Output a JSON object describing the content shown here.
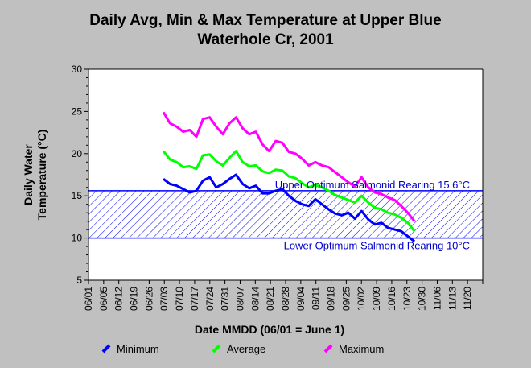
{
  "chart_data": {
    "type": "line",
    "title_lines": [
      "Daily Avg, Min & Max Temperature at Upper Blue",
      "Waterhole Cr, 2001"
    ],
    "xlabel": "Date MMDD (06/01 = June 1)",
    "ylabel_lines": [
      "Daily Water",
      "Temperature (°C)"
    ],
    "ylim": [
      5,
      30
    ],
    "yticks": [
      5,
      10,
      15,
      20,
      25,
      30
    ],
    "xlim": [
      "2001-06-01",
      "2001-11-27"
    ],
    "xtick_labels": [
      "06/01",
      "06/05",
      "06/12",
      "06/19",
      "06/26",
      "07/03",
      "07/10",
      "07/17",
      "07/24",
      "07/31",
      "08/07",
      "08/14",
      "08/21",
      "08/28",
      "09/04",
      "09/11",
      "09/18",
      "09/25",
      "10/02",
      "10/09",
      "10/16",
      "10/23",
      "10/30",
      "11/06",
      "11/13",
      "11/20"
    ],
    "grid": false,
    "reference_band": {
      "upper": 15.6,
      "lower": 10,
      "upper_label": "Upper Optimum Salmonid Rearing 15.6°C",
      "lower_label": "Lower Optimum Salmonid Rearing 10°C",
      "color": "#0000ff"
    },
    "series": [
      {
        "name": "Maximum",
        "color": "#ff00ff",
        "x": [
          "2001-07-05",
          "2001-07-08",
          "2001-07-11",
          "2001-07-14",
          "2001-07-17",
          "2001-07-20",
          "2001-07-23",
          "2001-07-26",
          "2001-07-29",
          "2001-08-01",
          "2001-08-04",
          "2001-08-07",
          "2001-08-10",
          "2001-08-13",
          "2001-08-16",
          "2001-08-19",
          "2001-08-22",
          "2001-08-25",
          "2001-08-28",
          "2001-08-31",
          "2001-09-03",
          "2001-09-06",
          "2001-09-09",
          "2001-09-12",
          "2001-09-15",
          "2001-09-18",
          "2001-09-21",
          "2001-09-24",
          "2001-09-27",
          "2001-09-30",
          "2001-10-03",
          "2001-10-06",
          "2001-10-09",
          "2001-10-12",
          "2001-10-15",
          "2001-10-18",
          "2001-10-21",
          "2001-10-24",
          "2001-10-27"
        ],
        "values": [
          24.9,
          23.6,
          23.2,
          22.6,
          22.8,
          22.0,
          24.1,
          24.3,
          23.2,
          22.3,
          23.6,
          24.3,
          23.0,
          22.3,
          22.6,
          21.1,
          20.3,
          21.5,
          21.3,
          20.2,
          20.0,
          19.4,
          18.6,
          19.0,
          18.6,
          18.4,
          17.8,
          17.2,
          16.6,
          16.1,
          17.2,
          16.0,
          15.4,
          15.2,
          14.8,
          14.5,
          13.8,
          13.0,
          12.0
        ]
      },
      {
        "name": "Average",
        "color": "#00ff00",
        "x": [
          "2001-07-05",
          "2001-07-08",
          "2001-07-11",
          "2001-07-14",
          "2001-07-17",
          "2001-07-20",
          "2001-07-23",
          "2001-07-26",
          "2001-07-29",
          "2001-08-01",
          "2001-08-04",
          "2001-08-07",
          "2001-08-10",
          "2001-08-13",
          "2001-08-16",
          "2001-08-19",
          "2001-08-22",
          "2001-08-25",
          "2001-08-28",
          "2001-08-31",
          "2001-09-03",
          "2001-09-06",
          "2001-09-09",
          "2001-09-12",
          "2001-09-15",
          "2001-09-18",
          "2001-09-21",
          "2001-09-24",
          "2001-09-27",
          "2001-09-30",
          "2001-10-03",
          "2001-10-06",
          "2001-10-09",
          "2001-10-12",
          "2001-10-15",
          "2001-10-18",
          "2001-10-21",
          "2001-10-24",
          "2001-10-27"
        ],
        "values": [
          20.3,
          19.3,
          19.0,
          18.4,
          18.5,
          18.2,
          19.8,
          19.9,
          19.1,
          18.6,
          19.5,
          20.3,
          19.0,
          18.5,
          18.6,
          17.9,
          17.7,
          18.1,
          18.0,
          17.3,
          17.1,
          16.5,
          16.0,
          16.3,
          16.0,
          15.6,
          15.1,
          14.8,
          14.5,
          14.2,
          15.0,
          14.2,
          13.6,
          13.4,
          13.0,
          12.8,
          12.4,
          11.8,
          10.8
        ]
      },
      {
        "name": "Minimum",
        "color": "#0000ff",
        "x": [
          "2001-07-05",
          "2001-07-08",
          "2001-07-11",
          "2001-07-14",
          "2001-07-17",
          "2001-07-20",
          "2001-07-23",
          "2001-07-26",
          "2001-07-29",
          "2001-08-01",
          "2001-08-04",
          "2001-08-07",
          "2001-08-10",
          "2001-08-13",
          "2001-08-16",
          "2001-08-19",
          "2001-08-22",
          "2001-08-25",
          "2001-08-28",
          "2001-08-31",
          "2001-09-03",
          "2001-09-06",
          "2001-09-09",
          "2001-09-12",
          "2001-09-15",
          "2001-09-18",
          "2001-09-21",
          "2001-09-24",
          "2001-09-27",
          "2001-09-30",
          "2001-10-03",
          "2001-10-06",
          "2001-10-09",
          "2001-10-12",
          "2001-10-15",
          "2001-10-18",
          "2001-10-21",
          "2001-10-24",
          "2001-10-27"
        ],
        "values": [
          17.0,
          16.4,
          16.2,
          15.8,
          15.4,
          15.6,
          16.8,
          17.2,
          16.0,
          16.4,
          17.0,
          17.5,
          16.4,
          15.9,
          16.2,
          15.3,
          15.3,
          15.6,
          15.8,
          15.0,
          14.4,
          14.0,
          13.8,
          14.6,
          14.0,
          13.4,
          12.9,
          12.7,
          13.0,
          12.3,
          13.2,
          12.2,
          11.6,
          11.8,
          11.2,
          11.0,
          10.8,
          10.2,
          9.6
        ]
      }
    ],
    "legend": {
      "placement": "bottom",
      "items": [
        {
          "label": "Minimum",
          "color": "#0000ff"
        },
        {
          "label": "Average",
          "color": "#00ff00"
        },
        {
          "label": "Maximum",
          "color": "#ff00ff"
        }
      ]
    }
  }
}
